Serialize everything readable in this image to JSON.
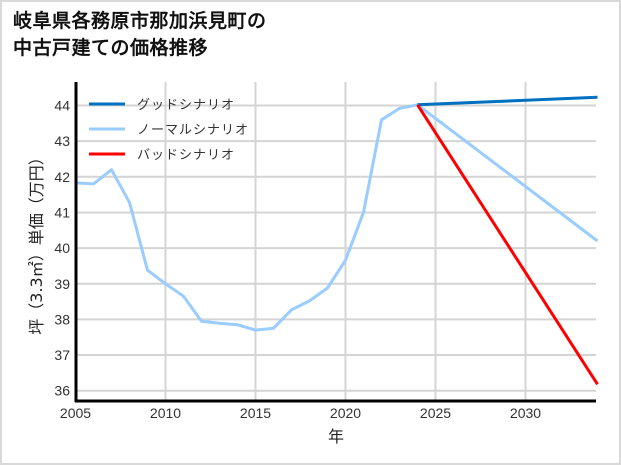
{
  "chart_data": {
    "type": "line",
    "title": "岐阜県各務原市那加浜見町の中古戸建ての価格推移",
    "title_lines": [
      "岐阜県各務原市那加浜見町の",
      "中古戸建ての価格推移"
    ],
    "xlabel": "年",
    "ylabel": "坪（3.3㎡）単価（万円）",
    "xlim": [
      2005,
      2034
    ],
    "ylim": [
      35.75,
      44.6
    ],
    "xticks": [
      2005,
      2010,
      2015,
      2020,
      2025,
      2030
    ],
    "yticks": [
      36,
      37,
      38,
      39,
      40,
      41,
      42,
      43,
      44
    ],
    "grid": true,
    "legend_position": "upper left",
    "series": [
      {
        "name": "グッドシナリオ",
        "color": "#0070c0",
        "x": [
          2024,
          2034
        ],
        "values": [
          44.02,
          44.23
        ]
      },
      {
        "name": "ノーマルシナリオ",
        "color": "#99ccff",
        "x": [
          2005,
          2006,
          2007,
          2008,
          2009,
          2010,
          2011,
          2012,
          2013,
          2014,
          2015,
          2016,
          2017,
          2018,
          2019,
          2020,
          2021,
          2022,
          2023,
          2024,
          2034
        ],
        "values": [
          41.83,
          41.8,
          42.2,
          41.28,
          39.38,
          39.0,
          38.65,
          37.95,
          37.89,
          37.85,
          37.7,
          37.75,
          38.27,
          38.52,
          38.88,
          39.66,
          41.0,
          43.6,
          43.92,
          44.02,
          40.2
        ]
      },
      {
        "name": "バッドシナリオ",
        "color": "#ff0000",
        "x": [
          2024,
          2034
        ],
        "values": [
          44.02,
          36.18
        ]
      }
    ]
  }
}
